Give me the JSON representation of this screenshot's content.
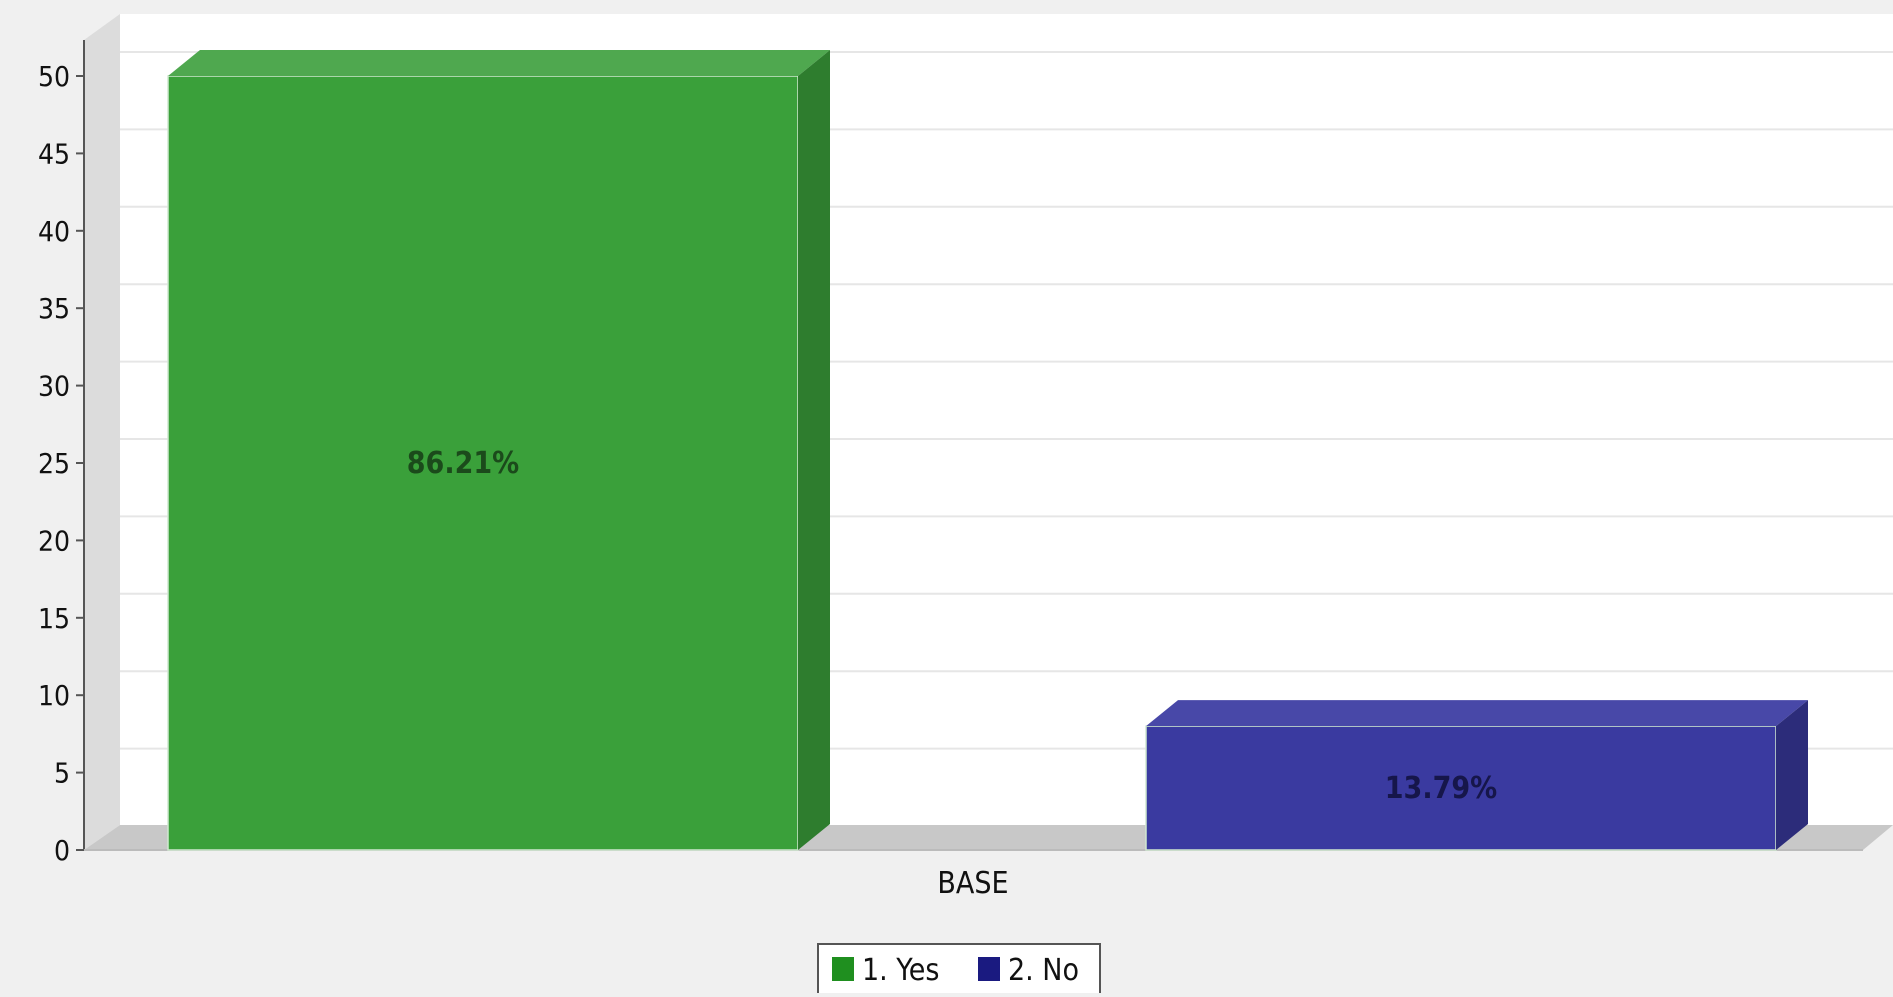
{
  "chart_data": {
    "type": "bar",
    "style": "3d",
    "categories": [
      "BASE"
    ],
    "series": [
      {
        "name": "1. Yes",
        "values": [
          50
        ],
        "percent_label": "86.21%",
        "color": "#3aa03a",
        "side_color": "#2e7d2e",
        "top_color": "#4fa84f",
        "label_color": "#1b4a1b"
      },
      {
        "name": "2. No",
        "values": [
          8
        ],
        "percent_label": "13.79%",
        "color": "#3a3aa0",
        "side_color": "#2c2c7a",
        "top_color": "#4848a8",
        "label_color": "#16164a"
      }
    ],
    "yticks": [
      0,
      5,
      10,
      15,
      20,
      25,
      30,
      35,
      40,
      45,
      50
    ],
    "ylim": [
      0,
      54
    ],
    "grid": true,
    "legend_position": "bottom-center"
  }
}
